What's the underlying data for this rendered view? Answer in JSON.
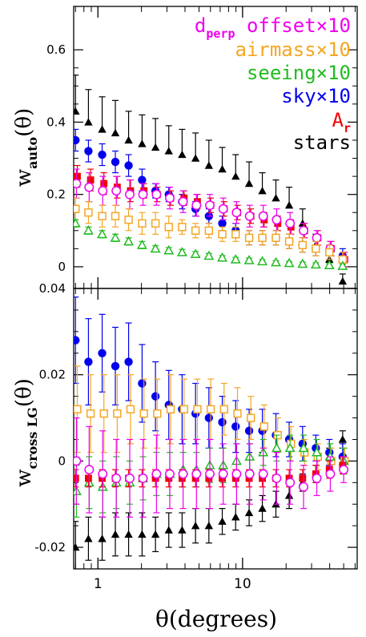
{
  "chart_data": [
    {
      "type": "scatter",
      "panel": "top",
      "ylabel": {
        "main": "w",
        "sub": "auto",
        "tail": "(θ)"
      },
      "xscale": "log",
      "xlim": [
        0.68,
        62
      ],
      "ylim": [
        -0.06,
        0.72
      ],
      "yticks": [
        {
          "v": 0,
          "label": "0"
        },
        {
          "v": 0.2,
          "label": "0.2"
        },
        {
          "v": 0.4,
          "label": "0.4"
        },
        {
          "v": 0.6,
          "label": "0.6"
        }
      ],
      "grid": false,
      "legend": "top-right",
      "series": [
        {
          "name": "stars",
          "color": "#000000",
          "marker": "triangle-filled",
          "err": "high",
          "x": [
            0.7,
            0.86,
            1.07,
            1.32,
            1.63,
            2.02,
            2.5,
            3.09,
            3.82,
            4.73,
            5.85,
            7.24,
            8.96,
            11.1,
            13.7,
            17.0,
            21.0,
            26.0,
            32.1,
            39.8,
            49.2
          ],
          "y": [
            0.43,
            0.4,
            0.38,
            0.37,
            0.35,
            0.34,
            0.33,
            0.32,
            0.31,
            0.3,
            0.28,
            0.27,
            0.25,
            0.23,
            0.21,
            0.19,
            0.17,
            0.12,
            0.06,
            0.02,
            -0.04
          ],
          "e": [
            0.1,
            0.09,
            0.09,
            0.09,
            0.08,
            0.08,
            0.08,
            0.07,
            0.07,
            0.07,
            0.07,
            0.06,
            0.06,
            0.06,
            0.05,
            0.05,
            0.05,
            0.04,
            0.03,
            0.03,
            0.02
          ]
        },
        {
          "name": "sky×10",
          "color": "#0000ee",
          "marker": "circle-filled",
          "err": "both",
          "x": [
            0.7,
            0.86,
            1.07,
            1.32,
            1.63,
            2.02,
            2.5,
            3.09,
            3.82,
            4.73,
            5.85,
            7.24,
            8.96,
            11.1,
            13.7,
            17.0,
            21.0,
            26.0,
            32.1,
            39.8,
            49.2
          ],
          "y": [
            0.35,
            0.32,
            0.31,
            0.29,
            0.28,
            0.24,
            0.21,
            0.2,
            0.18,
            0.16,
            0.14,
            0.12,
            0.1,
            0.08,
            0.08,
            0.08,
            0.07,
            0.06,
            0.05,
            0.04,
            0.03
          ],
          "e": [
            0.03,
            0.03,
            0.03,
            0.03,
            0.03,
            0.03,
            0.02,
            0.02,
            0.02,
            0.02,
            0.02,
            0.02,
            0.02,
            0.02,
            0.02,
            0.02,
            0.02,
            0.02,
            0.02,
            0.02,
            0.02
          ]
        },
        {
          "name": "A_r",
          "color": "#ee0000",
          "marker": "square-filled",
          "err": "both",
          "x": [
            0.72,
            0.89,
            1.1,
            1.36,
            1.68,
            2.08,
            2.57,
            3.18,
            3.94,
            4.87,
            6.02,
            7.45,
            9.22,
            11.4,
            14.1,
            17.5,
            21.6,
            26.8,
            33.1,
            41.0,
            50.7
          ],
          "y": [
            0.25,
            0.24,
            0.23,
            0.22,
            0.21,
            0.21,
            0.2,
            0.19,
            0.19,
            0.18,
            0.17,
            0.16,
            0.15,
            0.14,
            0.13,
            0.12,
            0.11,
            0.1,
            0.08,
            0.05,
            0.02
          ],
          "e": [
            0.03,
            0.03,
            0.03,
            0.03,
            0.03,
            0.02,
            0.02,
            0.02,
            0.02,
            0.02,
            0.02,
            0.02,
            0.02,
            0.02,
            0.02,
            0.02,
            0.02,
            0.02,
            0.02,
            0.02,
            0.02
          ]
        },
        {
          "name": "d_perp offset×10",
          "color": "#ee00ee",
          "marker": "circle-open",
          "err": "both",
          "x": [
            0.71,
            0.87,
            1.08,
            1.34,
            1.66,
            2.05,
            2.54,
            3.14,
            3.88,
            4.8,
            5.94,
            7.35,
            9.09,
            11.2,
            13.9,
            17.2,
            21.3,
            26.4,
            32.6,
            40.4,
            50.0
          ],
          "y": [
            0.23,
            0.22,
            0.21,
            0.21,
            0.2,
            0.2,
            0.2,
            0.19,
            0.18,
            0.17,
            0.17,
            0.16,
            0.15,
            0.14,
            0.14,
            0.13,
            0.12,
            0.1,
            0.08,
            0.05,
            0.02
          ],
          "e": [
            0.04,
            0.04,
            0.04,
            0.04,
            0.04,
            0.03,
            0.03,
            0.03,
            0.03,
            0.03,
            0.03,
            0.03,
            0.03,
            0.03,
            0.03,
            0.03,
            0.03,
            0.02,
            0.02,
            0.02,
            0.02
          ]
        },
        {
          "name": "airmass×10",
          "color": "#f5a623",
          "marker": "square-open",
          "err": "both",
          "x": [
            0.7,
            0.86,
            1.07,
            1.32,
            1.63,
            2.02,
            2.5,
            3.09,
            3.82,
            4.73,
            5.85,
            7.24,
            8.96,
            11.1,
            13.7,
            17.0,
            21.0,
            26.0,
            32.1,
            39.8,
            49.2
          ],
          "y": [
            0.16,
            0.15,
            0.14,
            0.14,
            0.13,
            0.12,
            0.12,
            0.11,
            0.11,
            0.1,
            0.1,
            0.09,
            0.09,
            0.08,
            0.08,
            0.08,
            0.07,
            0.06,
            0.05,
            0.04,
            0.02
          ],
          "e": [
            0.03,
            0.03,
            0.03,
            0.03,
            0.03,
            0.03,
            0.03,
            0.03,
            0.02,
            0.02,
            0.02,
            0.02,
            0.02,
            0.02,
            0.02,
            0.02,
            0.02,
            0.02,
            0.02,
            0.02,
            0.02
          ]
        },
        {
          "name": "seeing×10",
          "color": "#22bb22",
          "marker": "triangle-open",
          "err": "both",
          "x": [
            0.7,
            0.86,
            1.07,
            1.32,
            1.63,
            2.02,
            2.5,
            3.09,
            3.82,
            4.73,
            5.85,
            7.24,
            8.96,
            11.1,
            13.7,
            17.0,
            21.0,
            26.0,
            32.1,
            39.8,
            49.2
          ],
          "y": [
            0.12,
            0.1,
            0.09,
            0.08,
            0.07,
            0.06,
            0.05,
            0.045,
            0.04,
            0.035,
            0.03,
            0.025,
            0.02,
            0.018,
            0.015,
            0.012,
            0.01,
            0.008,
            0.006,
            0.004,
            0.002
          ],
          "e": [
            0.01,
            0.01,
            0.01,
            0.01,
            0.01,
            0.01,
            0.008,
            0.008,
            0.008,
            0.007,
            0.007,
            0.006,
            0.006,
            0.006,
            0.005,
            0.005,
            0.005,
            0.005,
            0.005,
            0.005,
            0.005
          ]
        }
      ]
    },
    {
      "type": "scatter",
      "panel": "bottom",
      "ylabel": {
        "main": "w",
        "sub": "cross LG",
        "tail": "(θ)"
      },
      "xlabel": "θ(degrees)",
      "xscale": "log",
      "xlim": [
        0.68,
        62
      ],
      "ylim": [
        -0.025,
        0.04
      ],
      "yticks": [
        {
          "v": -0.02,
          "label": "-0.02"
        },
        {
          "v": 0,
          "label": "0"
        },
        {
          "v": 0.02,
          "label": "0.02"
        },
        {
          "v": 0.04,
          "label": "0.04"
        }
      ],
      "xticks": [
        {
          "v": 1,
          "label": "1"
        },
        {
          "v": 10,
          "label": "10"
        }
      ],
      "grid": false,
      "series": [
        {
          "name": "stars",
          "color": "#000000",
          "marker": "triangle-filled",
          "err": "both",
          "x": [
            0.7,
            0.86,
            1.07,
            1.32,
            1.63,
            2.02,
            2.5,
            3.09,
            3.82,
            4.73,
            5.85,
            7.24,
            8.96,
            11.1,
            13.7,
            17.0,
            21.0,
            26.0,
            32.1,
            39.8,
            49.2
          ],
          "y": [
            -0.02,
            -0.018,
            -0.018,
            -0.017,
            -0.017,
            -0.017,
            -0.017,
            -0.016,
            -0.016,
            -0.015,
            -0.015,
            -0.014,
            -0.013,
            -0.012,
            -0.011,
            -0.01,
            -0.008,
            -0.005,
            -0.003,
            0.001,
            0.005
          ],
          "e": [
            0.006,
            0.005,
            0.005,
            0.005,
            0.005,
            0.005,
            0.004,
            0.004,
            0.004,
            0.004,
            0.004,
            0.003,
            0.003,
            0.003,
            0.003,
            0.003,
            0.003,
            0.002,
            0.002,
            0.002,
            0.002
          ]
        },
        {
          "name": "sky×10",
          "color": "#0000ee",
          "marker": "circle-filled",
          "err": "both",
          "x": [
            0.7,
            0.86,
            1.07,
            1.32,
            1.63,
            2.02,
            2.5,
            3.09,
            3.82,
            4.73,
            5.85,
            7.24,
            8.96,
            11.1,
            13.7,
            17.0,
            21.0,
            26.0,
            32.1,
            39.8,
            49.2
          ],
          "y": [
            0.028,
            0.023,
            0.025,
            0.022,
            0.023,
            0.018,
            0.015,
            0.013,
            0.012,
            0.011,
            0.01,
            0.009,
            0.008,
            0.007,
            0.007,
            0.006,
            0.005,
            0.004,
            0.003,
            0.002,
            0.001
          ],
          "e": [
            0.01,
            0.01,
            0.009,
            0.009,
            0.009,
            0.009,
            0.008,
            0.008,
            0.008,
            0.007,
            0.007,
            0.006,
            0.006,
            0.005,
            0.005,
            0.005,
            0.004,
            0.004,
            0.003,
            0.003,
            0.003
          ]
        },
        {
          "name": "airmass×10",
          "color": "#f5a623",
          "marker": "square-open",
          "err": "both",
          "x": [
            0.72,
            0.89,
            1.1,
            1.36,
            1.68,
            2.08,
            2.57,
            3.18,
            3.94,
            4.87,
            6.02,
            7.45,
            9.22,
            11.4,
            14.1,
            17.5,
            21.6,
            26.8,
            33.1,
            41.0,
            50.7
          ],
          "y": [
            0.012,
            0.011,
            0.011,
            0.011,
            0.012,
            0.011,
            0.011,
            0.012,
            0.012,
            0.012,
            0.012,
            0.012,
            0.011,
            0.01,
            0.008,
            0.006,
            0.004,
            0.002,
            0.001,
            0.0,
            0.0
          ],
          "e": [
            0.01,
            0.009,
            0.009,
            0.009,
            0.008,
            0.008,
            0.008,
            0.008,
            0.007,
            0.007,
            0.007,
            0.006,
            0.006,
            0.005,
            0.005,
            0.004,
            0.004,
            0.003,
            0.003,
            0.003,
            0.003
          ]
        },
        {
          "name": "seeing×10",
          "color": "#22bb22",
          "marker": "triangle-open",
          "err": "both",
          "x": [
            0.71,
            0.87,
            1.08,
            1.34,
            1.66,
            2.05,
            2.54,
            3.14,
            3.88,
            4.8,
            5.94,
            7.35,
            9.09,
            11.2,
            13.9,
            17.2,
            21.3,
            26.4,
            32.6,
            40.4,
            50.0
          ],
          "y": [
            -0.007,
            -0.005,
            -0.006,
            -0.005,
            -0.005,
            -0.004,
            -0.003,
            -0.003,
            -0.002,
            -0.002,
            -0.001,
            -0.001,
            0.0,
            0.001,
            0.002,
            0.003,
            0.003,
            0.003,
            0.002,
            0.001,
            0.0
          ],
          "e": [
            0.006,
            0.006,
            0.006,
            0.006,
            0.005,
            0.005,
            0.005,
            0.005,
            0.004,
            0.004,
            0.004,
            0.004,
            0.004,
            0.003,
            0.003,
            0.003,
            0.003,
            0.003,
            0.003,
            0.003,
            0.003
          ]
        },
        {
          "name": "A_r",
          "color": "#ee0000",
          "marker": "square-filled",
          "err": "both",
          "x": [
            0.7,
            0.86,
            1.07,
            1.32,
            1.63,
            2.02,
            2.5,
            3.09,
            3.82,
            4.73,
            5.85,
            7.24,
            8.96,
            11.1,
            13.7,
            17.0,
            21.0,
            26.0,
            32.1,
            39.8,
            49.2
          ],
          "y": [
            -0.004,
            -0.004,
            -0.004,
            -0.004,
            -0.004,
            -0.004,
            -0.004,
            -0.004,
            -0.004,
            -0.004,
            -0.004,
            -0.004,
            -0.004,
            -0.004,
            -0.004,
            -0.004,
            -0.004,
            -0.004,
            -0.003,
            -0.002,
            -0.001
          ],
          "e": [
            0.002,
            0.002,
            0.002,
            0.002,
            0.002,
            0.002,
            0.002,
            0.002,
            0.002,
            0.002,
            0.002,
            0.002,
            0.002,
            0.002,
            0.002,
            0.002,
            0.002,
            0.002,
            0.002,
            0.002,
            0.002
          ]
        },
        {
          "name": "d_perp offset×10",
          "color": "#ee00ee",
          "marker": "circle-open",
          "err": "both",
          "x": [
            0.71,
            0.87,
            1.08,
            1.34,
            1.66,
            2.05,
            2.54,
            3.14,
            3.88,
            4.8,
            5.94,
            7.35,
            9.09,
            11.2,
            13.9,
            17.2,
            21.3,
            26.4,
            32.6,
            40.4,
            50.0
          ],
          "y": [
            0.0,
            -0.002,
            -0.003,
            -0.004,
            -0.004,
            -0.004,
            -0.003,
            -0.003,
            -0.003,
            -0.003,
            -0.003,
            -0.003,
            -0.003,
            -0.003,
            -0.003,
            -0.004,
            -0.005,
            -0.006,
            -0.004,
            -0.003,
            -0.002
          ],
          "e": [
            0.01,
            0.01,
            0.01,
            0.009,
            0.009,
            0.009,
            0.009,
            0.008,
            0.008,
            0.008,
            0.008,
            0.007,
            0.007,
            0.007,
            0.006,
            0.006,
            0.005,
            0.005,
            0.004,
            0.004,
            0.003
          ]
        }
      ]
    }
  ],
  "legend": [
    {
      "main": "d",
      "sub": "perp",
      "tail": " offset×10",
      "color": "#ee00ee"
    },
    {
      "main": "airmass×10",
      "color": "#f5a623"
    },
    {
      "main": "seeing×10",
      "color": "#22bb22"
    },
    {
      "main": "sky×10",
      "color": "#0000ee"
    },
    {
      "main": "A",
      "sub": "r",
      "color": "#ee0000"
    },
    {
      "main": "stars",
      "color": "#000000"
    }
  ]
}
